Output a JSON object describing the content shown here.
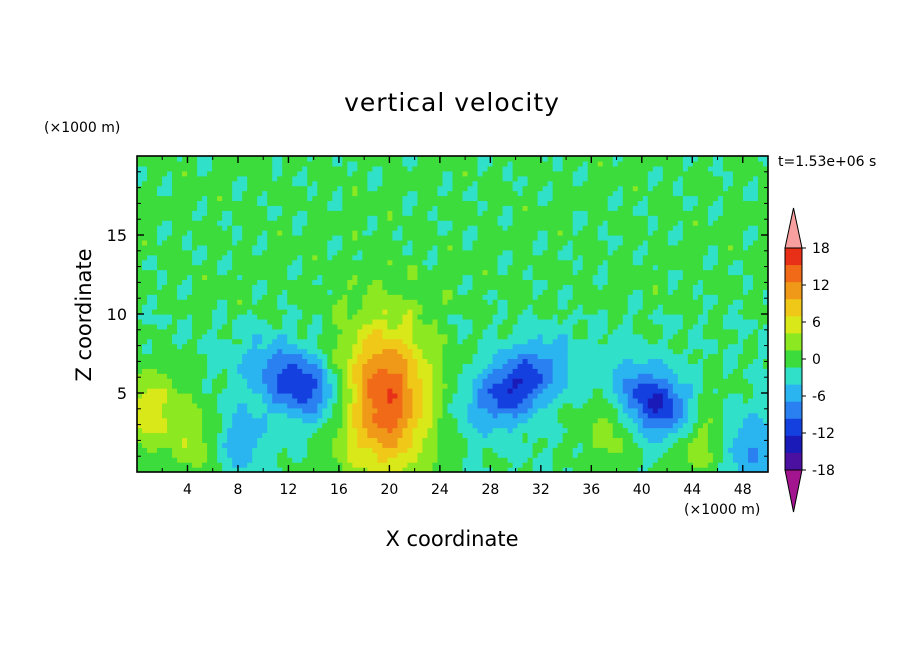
{
  "chart_data": {
    "type": "heatmap",
    "title": "vertical velocity",
    "xlabel": "X coordinate",
    "ylabel": "Z coordinate",
    "x_unit_label": "(×1000 m)",
    "y_unit_label": "(×1000 m)",
    "time_label": "t=1.53e+06 s",
    "xlim": [
      0,
      50
    ],
    "ylim": [
      0,
      20
    ],
    "x_ticks": [
      "4",
      "8",
      "12",
      "16",
      "20",
      "24",
      "28",
      "32",
      "36",
      "40",
      "44",
      "48"
    ],
    "y_ticks": [
      "5",
      "10",
      "15"
    ],
    "colorbar": {
      "range": [
        -21,
        21
      ],
      "levels": [
        -21,
        -18,
        -15,
        -12,
        -9,
        -6,
        -3,
        0,
        3,
        6,
        9,
        12,
        15,
        18,
        21
      ],
      "tick_labels": [
        "18",
        "12",
        "6",
        "0",
        "-6",
        "-12",
        "-18"
      ],
      "colors": [
        "#a3158f",
        "#4b10a0",
        "#1a1ab8",
        "#1540e0",
        "#2a80f0",
        "#2ab5f0",
        "#30e0c8",
        "#3cdc3c",
        "#8ce820",
        "#d8e818",
        "#f0c818",
        "#f09818",
        "#f06a18",
        "#e83018",
        "#f8a0a0"
      ]
    },
    "features": [
      {
        "kind": "updraft",
        "x": 19.6,
        "z": 4.7,
        "peak": 18
      },
      {
        "kind": "updraft",
        "x": 44.6,
        "z": 2.4,
        "peak": 8
      },
      {
        "kind": "updraft",
        "x": 1.0,
        "z": 4.0,
        "peak": 8
      },
      {
        "kind": "updraft",
        "x": 5.0,
        "z": 2.0,
        "peak": 6
      },
      {
        "kind": "updraft",
        "x": 37.5,
        "z": 3.0,
        "peak": 5
      },
      {
        "kind": "downdraft",
        "x": 13.0,
        "z": 5.6,
        "peak": -12
      },
      {
        "kind": "downdraft",
        "x": 30.0,
        "z": 5.5,
        "peak": -12
      },
      {
        "kind": "downdraft",
        "x": 41.2,
        "z": 4.3,
        "peak": -13
      },
      {
        "kind": "downdraft",
        "x": 7.8,
        "z": 2.0,
        "peak": -6
      },
      {
        "kind": "downdraft",
        "x": 48.6,
        "z": 1.5,
        "peak": -6
      }
    ]
  }
}
